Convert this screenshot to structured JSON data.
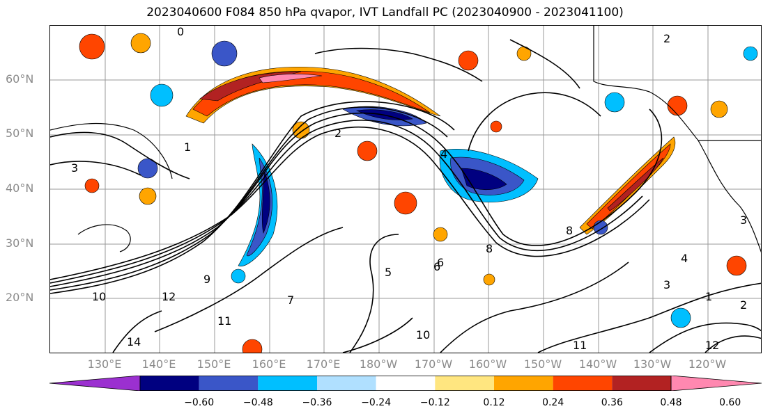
{
  "title": "2023040600 F084 850 hPa qvapor, IVT Landfall PC (2023040900 - 2023041100)",
  "lat_labels": [
    "60°N",
    "50°N",
    "40°N",
    "30°N",
    "20°N"
  ],
  "lon_labels": [
    "130°E",
    "140°E",
    "150°E",
    "160°E",
    "170°E",
    "180°W",
    "170°W",
    "160°W",
    "150°W",
    "140°W",
    "130°W",
    "120°W"
  ],
  "contour_labels": [
    "0",
    "2",
    "1",
    "2",
    "3",
    "4",
    "5",
    "6",
    "7",
    "8",
    "9",
    "10",
    "11",
    "12",
    "14",
    "3",
    "4",
    "6",
    "8",
    "10",
    "11",
    "12",
    "2",
    "1",
    "3"
  ],
  "colorbar": {
    "ticks": [
      "−0.60",
      "−0.48",
      "−0.36",
      "−0.24",
      "−0.12",
      "0.12",
      "0.24",
      "0.36",
      "0.48",
      "0.60"
    ],
    "colors": [
      "#9b30d0",
      "#000080",
      "#3a56c8",
      "#00bfff",
      "#b0e0ff",
      "#ffffff",
      "#ffe680",
      "#ffa500",
      "#ff4500",
      "#b22222",
      "#ff88b0"
    ]
  }
}
